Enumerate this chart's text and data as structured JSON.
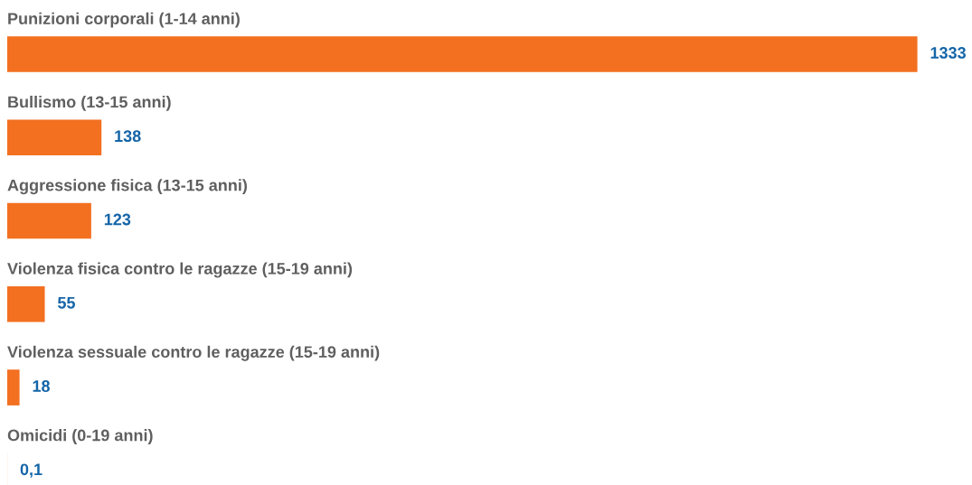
{
  "chart_data": {
    "type": "bar",
    "orientation": "horizontal",
    "categories": [
      "Punizioni corporali (1-14 anni)",
      "Bullismo (13-15 anni)",
      "Aggressione fisica (13-15 anni)",
      "Violenza fisica contro le ragazze (15-19 anni)",
      "Violenza sessuale contro le ragazze (15-19 anni)",
      "Omicidi (0-19 anni)"
    ],
    "values": [
      1333,
      138,
      123,
      55,
      18,
      0.1
    ],
    "value_labels": [
      "1333",
      "138",
      "123",
      "55",
      "18",
      "0,1"
    ],
    "color": "#f37021"
  }
}
